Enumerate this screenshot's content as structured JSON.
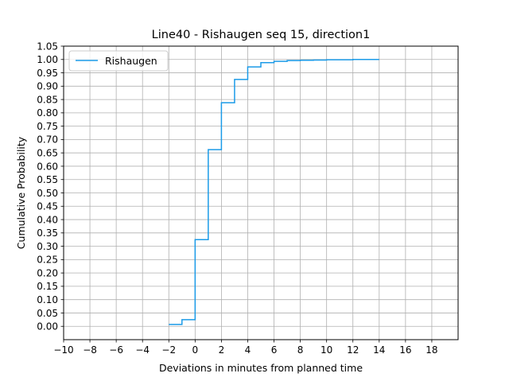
{
  "chart_data": {
    "type": "line",
    "title": "Line40 - Rishaugen seq 15, direction1",
    "xlabel": "Deviations in minutes from planned time",
    "ylabel": "Cumulative Probability",
    "xlim": [
      -10,
      20
    ],
    "ylim": [
      -0.05,
      1.05
    ],
    "x_ticks": [
      -10,
      -8,
      -6,
      -4,
      -2,
      0,
      2,
      4,
      6,
      8,
      10,
      12,
      14,
      16,
      18
    ],
    "x_tick_labels": [
      "−10",
      "−8",
      "−6",
      "−4",
      "−2",
      "0",
      "2",
      "4",
      "6",
      "8",
      "10",
      "12",
      "14",
      "16",
      "18"
    ],
    "y_ticks": [
      0.0,
      0.05,
      0.1,
      0.15,
      0.2,
      0.25,
      0.3,
      0.35,
      0.4,
      0.45,
      0.5,
      0.55,
      0.6,
      0.65,
      0.7,
      0.75,
      0.8,
      0.85,
      0.9,
      0.95,
      1.0,
      1.05
    ],
    "y_tick_labels": [
      "0.00",
      "0.05",
      "0.10",
      "0.15",
      "0.20",
      "0.25",
      "0.30",
      "0.35",
      "0.40",
      "0.45",
      "0.50",
      "0.55",
      "0.60",
      "0.65",
      "0.70",
      "0.75",
      "0.80",
      "0.85",
      "0.90",
      "0.95",
      "1.00",
      "1.05"
    ],
    "grid": true,
    "legend_position": "top-left",
    "step_where": "post",
    "series": [
      {
        "name": "Rishaugen",
        "color": "#1b9be8",
        "x": [
          -2,
          -1,
          0,
          1,
          2,
          3,
          4,
          5,
          6,
          7,
          8,
          9,
          10,
          11,
          12,
          13,
          14
        ],
        "y": [
          0.007,
          0.025,
          0.325,
          0.662,
          0.838,
          0.925,
          0.972,
          0.988,
          0.993,
          0.996,
          0.997,
          0.998,
          0.999,
          0.999,
          1.0,
          1.0,
          1.0
        ]
      }
    ]
  }
}
